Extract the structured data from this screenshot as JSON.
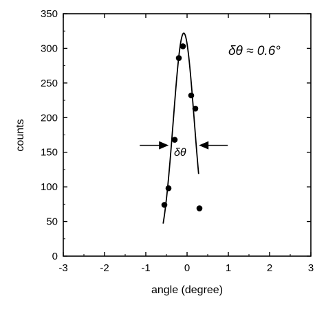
{
  "chart_data": {
    "type": "scatter",
    "title": "",
    "xlabel": "angle (degree)",
    "ylabel": "counts",
    "xlim": [
      -3,
      3
    ],
    "ylim": [
      0,
      350
    ],
    "xticks": [
      -3,
      -2,
      -1,
      0,
      1,
      2,
      3
    ],
    "yticks": [
      0,
      50,
      100,
      150,
      200,
      250,
      300,
      350
    ],
    "grid": false,
    "series": [
      {
        "kind": "points",
        "points": [
          {
            "x": -0.55,
            "y": 74
          },
          {
            "x": -0.45,
            "y": 98
          },
          {
            "x": -0.3,
            "y": 168
          },
          {
            "x": -0.2,
            "y": 286
          },
          {
            "x": -0.1,
            "y": 303
          },
          {
            "x": 0.1,
            "y": 232
          },
          {
            "x": 0.2,
            "y": 213
          },
          {
            "x": 0.3,
            "y": 69
          }
        ]
      },
      {
        "kind": "fit-curve",
        "center": -0.08,
        "peak": 322,
        "fwhm": 0.6,
        "x_range": [
          -0.58,
          0.28
        ]
      }
    ],
    "annotations": {
      "width_label": "δθ ≈ 0.6°",
      "marker_label": "δθ",
      "marker_level": 160
    }
  }
}
